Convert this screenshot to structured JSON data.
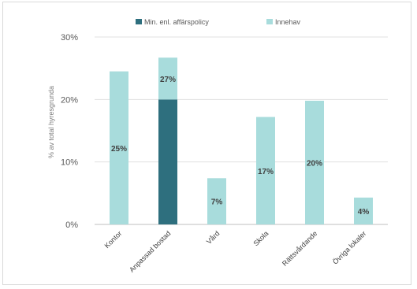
{
  "chart_data": {
    "type": "bar",
    "stacked": true,
    "categories": [
      "Kontor",
      "Anpassad bostad",
      "Vård",
      "Skola",
      "Rättsvårdande",
      "Övriga lokaler"
    ],
    "series": [
      {
        "name": "Min. enl. affärspolicy",
        "color": "#2e6f7e",
        "values": [
          0,
          20,
          0,
          0,
          0,
          0
        ]
      },
      {
        "name": "Innehav",
        "color": "#a8dcdc",
        "values": [
          24.5,
          6.7,
          7.4,
          17.2,
          19.8,
          4.3
        ]
      }
    ],
    "data_labels": [
      "25%",
      "27%",
      "7%",
      "17%",
      "20%",
      "4%"
    ],
    "y_ticks": [
      "0%",
      "10%",
      "20%",
      "30%"
    ],
    "ylim": [
      0,
      30
    ],
    "ylabel": "% av total hyresgrunda",
    "xlabel": "",
    "title": "",
    "legend_position": "top",
    "grid": true
  }
}
